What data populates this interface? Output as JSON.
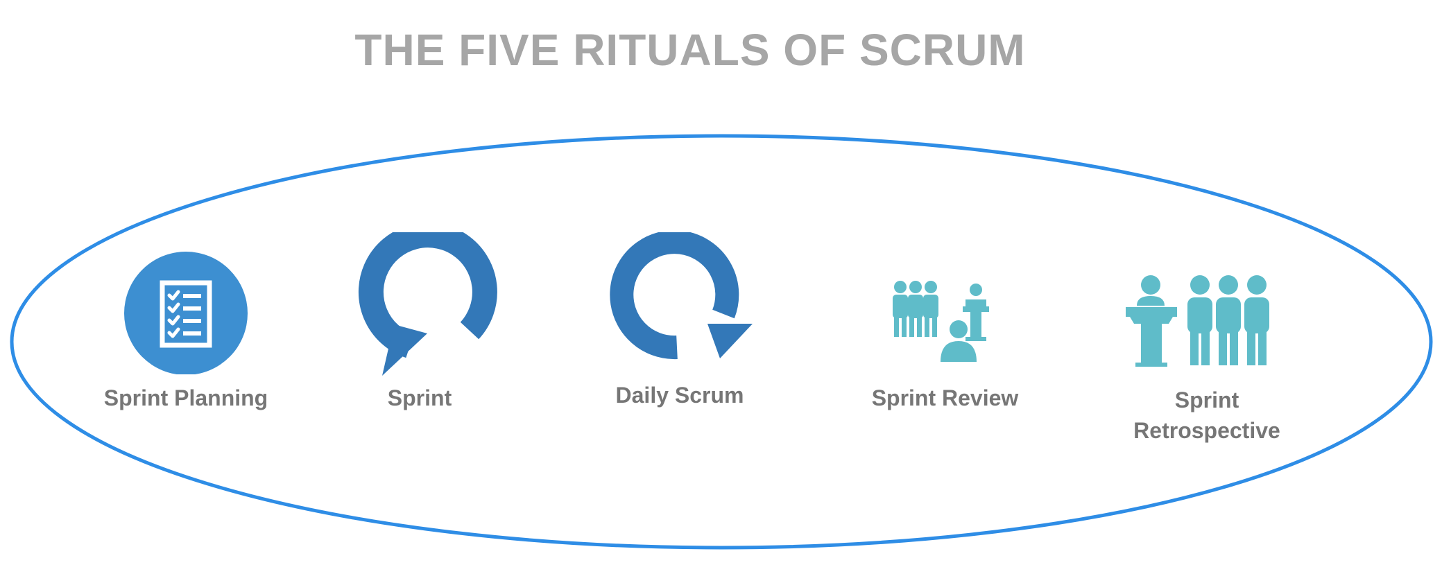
{
  "title": "THE FIVE RITUALS OF SCRUM",
  "colors": {
    "title": "#a6a6a6",
    "label": "#767676",
    "ellipse_stroke": "#2e8de6",
    "icon_blue": "#3d8fd1",
    "arrow_blue": "#3378b8",
    "people_teal": "#5fbcc9"
  },
  "rituals": [
    {
      "label": "Sprint Planning",
      "icon": "checklist-icon"
    },
    {
      "label": "Sprint",
      "icon": "cycle-arrow-icon"
    },
    {
      "label": "Daily Scrum",
      "icon": "cycle-arrow-icon"
    },
    {
      "label": "Sprint Review",
      "icon": "team-presentation-icon"
    },
    {
      "label": "Sprint\nRetrospective",
      "icon": "team-podium-icon"
    }
  ]
}
